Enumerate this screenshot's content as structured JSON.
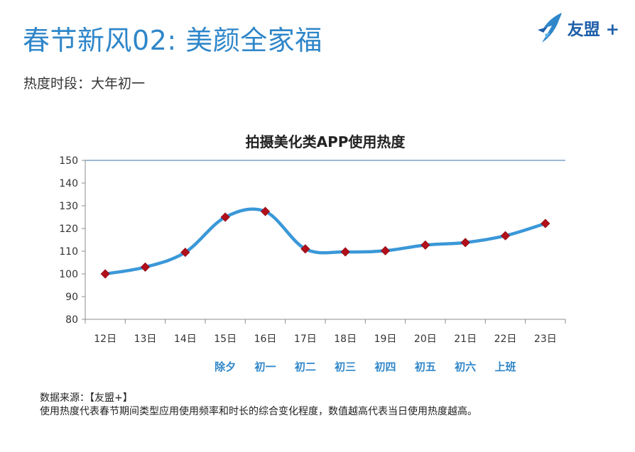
{
  "header": {
    "title": "春节新风02: 美颜全家福",
    "brand": "友盟 +"
  },
  "subtitle": "热度时段：大年初一",
  "chart_data": {
    "type": "line",
    "title": "拍摄美化类APP使用热度",
    "categories": [
      "12日",
      "13日",
      "14日",
      "15日",
      "16日",
      "17日",
      "18日",
      "19日",
      "20日",
      "21日",
      "22日",
      "23日"
    ],
    "holiday_labels": [
      "",
      "",
      "",
      "除夕",
      "初一",
      "初二",
      "初三",
      "初四",
      "初五",
      "初六",
      "上班",
      ""
    ],
    "values": [
      100,
      103,
      109.5,
      125,
      127.5,
      111,
      109.7,
      110.2,
      112.7,
      113.8,
      116.8,
      122.2
    ],
    "ylim": [
      80,
      150
    ],
    "yticks": [
      80,
      90,
      100,
      110,
      120,
      130,
      140,
      150
    ],
    "xlabel": "",
    "ylabel": "",
    "grid": false,
    "line_color": "#3a98d8",
    "marker_color": "#b30f1b",
    "holiday_label_color": "#2f86c9"
  },
  "footer": {
    "source_label": "数据来源：【友盟+】",
    "note": "使用热度代表春节期间类型应用使用频率和时长的综合变化程度，数值越高代表当日使用热度越高。"
  }
}
